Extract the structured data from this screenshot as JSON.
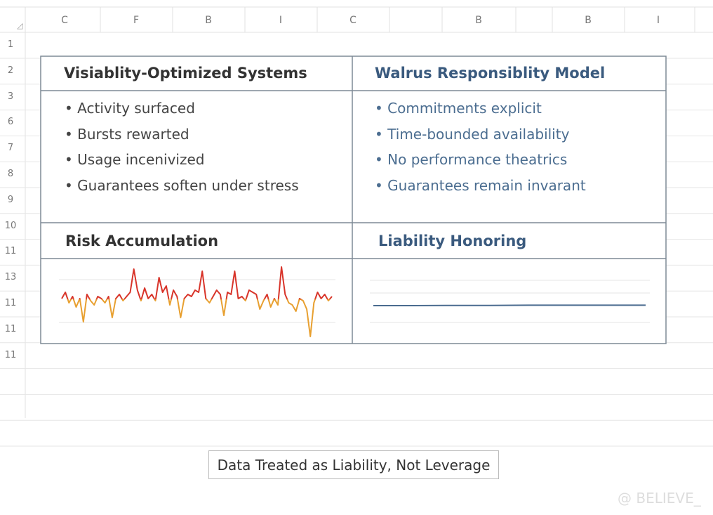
{
  "sheet": {
    "columns": [
      "C",
      "F",
      "B",
      "I",
      "C",
      "B",
      "B",
      "I"
    ],
    "rows": [
      "1",
      "2",
      "3",
      "6",
      "7",
      "8",
      "9",
      "10",
      "11",
      "13",
      "11",
      "11",
      "11"
    ]
  },
  "panels": {
    "left_title": "Visiablity-Optimized Systems",
    "left_items": [
      "Activity surfaced",
      "Bursts rewarted",
      "Usage incenivized",
      "Guarantees soften under stress"
    ],
    "right_title": "Walrus Responsiblity Model",
    "right_items": [
      "Commitments explicit",
      "Time-bounded availability",
      "No performance theatrics",
      "Guarantees remain invarant"
    ],
    "left_chart_title": "Risk Accumulation",
    "right_chart_title": "Liability Honoring"
  },
  "charts": [
    {
      "type": "line",
      "colors": [
        "#d8342a",
        "#e8a030"
      ],
      "values": [
        0,
        3,
        -2,
        1,
        -4,
        0,
        -11,
        2,
        -1,
        -3,
        1,
        0,
        -2,
        1,
        -9,
        0,
        2,
        -1,
        1,
        3,
        14,
        4,
        -1,
        5,
        0,
        2,
        -1,
        10,
        3,
        6,
        -3,
        4,
        1,
        -9,
        0,
        2,
        1,
        4,
        3,
        13,
        0,
        -2,
        1,
        4,
        2,
        -8,
        3,
        2,
        13,
        0,
        1,
        -1,
        4,
        3,
        2,
        -5,
        -1,
        2,
        -4,
        0,
        -3,
        15,
        2,
        -2,
        -3,
        -6,
        0,
        -1,
        -5,
        -18,
        -2,
        3,
        0,
        2,
        -1,
        1
      ]
    },
    {
      "type": "line",
      "colors": [
        "#4a6b8f"
      ],
      "values": [
        0,
        0,
        0.1,
        0.1,
        0.2,
        0.2,
        0.2,
        0.2
      ]
    }
  ],
  "caption": "Data Treated as Liability, Not Leverage",
  "watermark": "@ BELIEVE_"
}
